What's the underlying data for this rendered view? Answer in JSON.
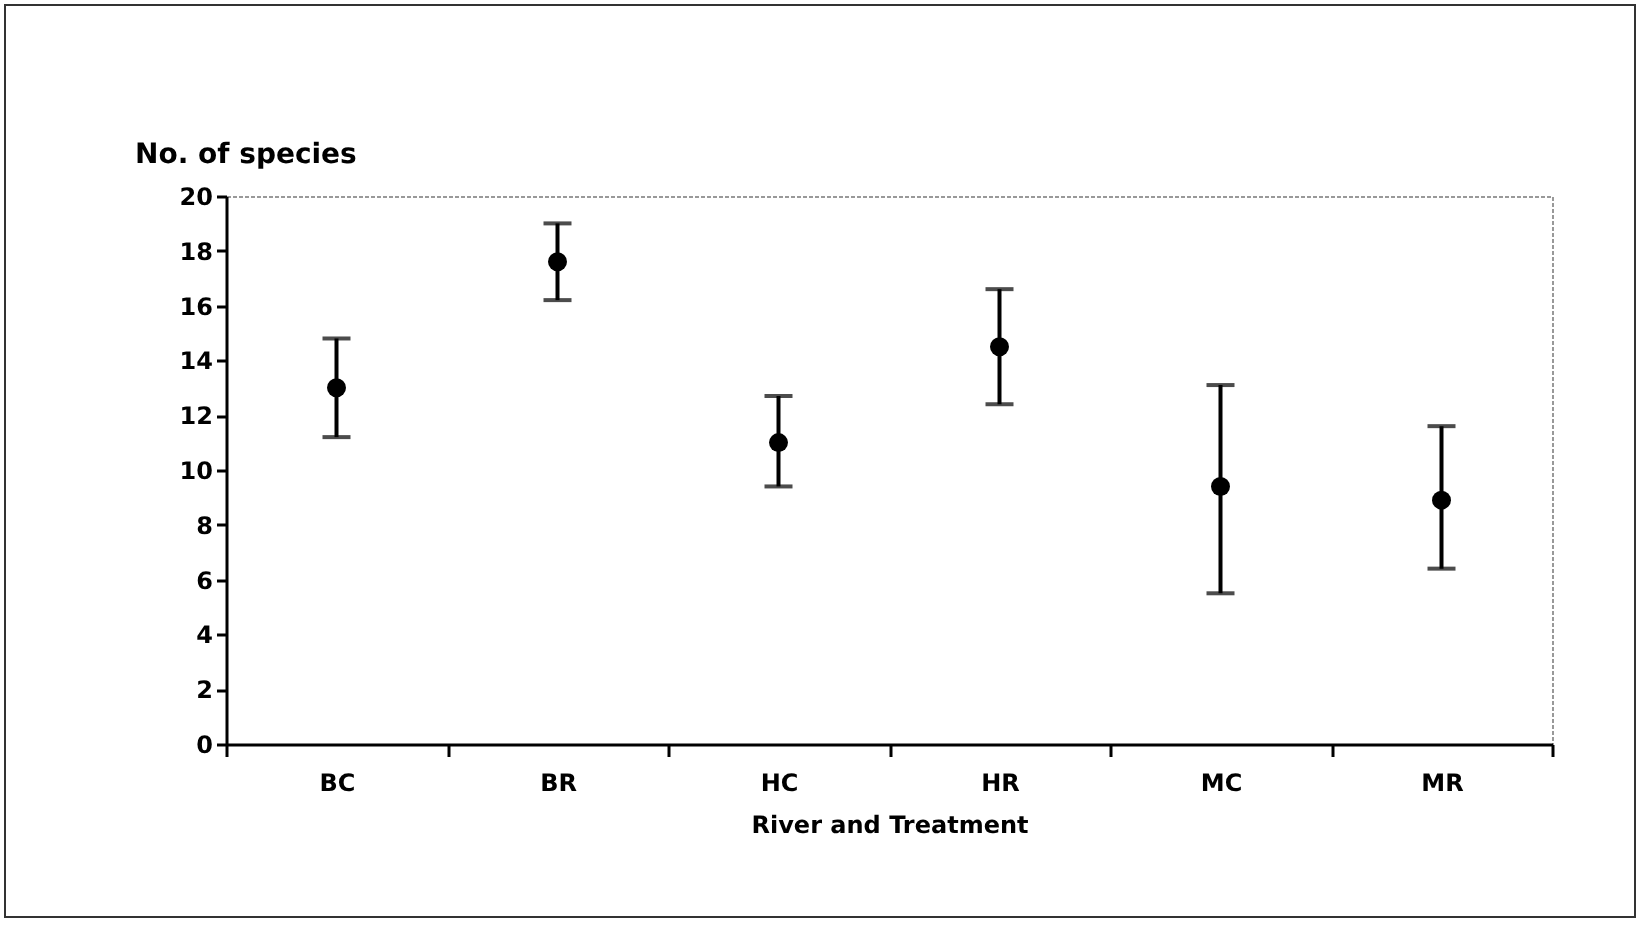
{
  "chart_data": {
    "type": "scatter",
    "ylabel": "No. of species",
    "xlabel": "River and Treatment",
    "categories": [
      "BC",
      "BR",
      "HC",
      "HR",
      "MC",
      "MR"
    ],
    "series": [
      {
        "color": "#000000",
        "values": [
          13.0,
          17.6,
          11.0,
          14.5,
          9.4,
          8.9
        ],
        "errors": [
          [
            11.2,
            14.8
          ],
          [
            16.2,
            19.0
          ],
          [
            9.4,
            12.7
          ],
          [
            12.4,
            16.6
          ],
          [
            5.5,
            13.1
          ],
          [
            6.4,
            11.6
          ]
        ]
      }
    ],
    "ylim": [
      0,
      20
    ],
    "yticks": [
      0,
      2,
      4,
      6,
      8,
      10,
      12,
      14,
      16,
      18,
      20
    ],
    "grid": false,
    "marker": "circle"
  }
}
